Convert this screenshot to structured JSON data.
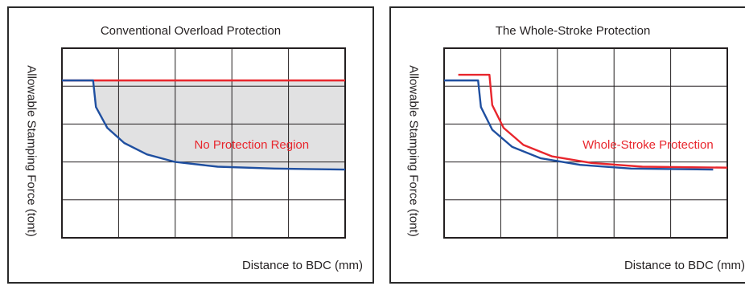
{
  "chart_data": [
    {
      "type": "line",
      "title": "Conventional Overload Protection",
      "xlabel": "Distance to BDC (mm)",
      "ylabel": "Allowable Stamping Force (tont)",
      "grid": true,
      "annotation": "No Protection Region",
      "xlim": [
        0,
        100
      ],
      "ylim": [
        0,
        100
      ],
      "series": [
        {
          "color": "#e8262d",
          "points": [
            [
              0,
              83
            ],
            [
              100,
              83
            ]
          ]
        },
        {
          "color": "#1f4fa0",
          "points": [
            [
              0,
              83
            ],
            [
              11,
              83
            ],
            [
              12,
              69
            ],
            [
              16,
              58
            ],
            [
              22,
              50
            ],
            [
              30,
              44
            ],
            [
              40,
              40
            ],
            [
              55,
              37.5
            ],
            [
              75,
              36.5
            ],
            [
              100,
              36
            ]
          ]
        }
      ],
      "shaded_region": {
        "color": "#e1e1e2"
      }
    },
    {
      "type": "line",
      "title": "The Whole-Stroke Protection",
      "xlabel": "Distance to BDC (mm)",
      "ylabel": "Allowable Stamping Force (tont)",
      "grid": true,
      "annotation": "Whole-Stroke Protection",
      "xlim": [
        0,
        100
      ],
      "ylim": [
        0,
        100
      ],
      "series": [
        {
          "color": "#e8262d",
          "points": [
            [
              5,
              86
            ],
            [
              16,
              86
            ],
            [
              17,
              70
            ],
            [
              21,
              58
            ],
            [
              28,
              49
            ],
            [
              38,
              43
            ],
            [
              52,
              39.5
            ],
            [
              70,
              37.5
            ],
            [
              100,
              37
            ]
          ]
        },
        {
          "color": "#1f4fa0",
          "points": [
            [
              0,
              83
            ],
            [
              12,
              83
            ],
            [
              13,
              69
            ],
            [
              17,
              57
            ],
            [
              24,
              48
            ],
            [
              34,
              42
            ],
            [
              48,
              38.5
            ],
            [
              66,
              36.5
            ],
            [
              95,
              36
            ]
          ]
        }
      ]
    }
  ]
}
